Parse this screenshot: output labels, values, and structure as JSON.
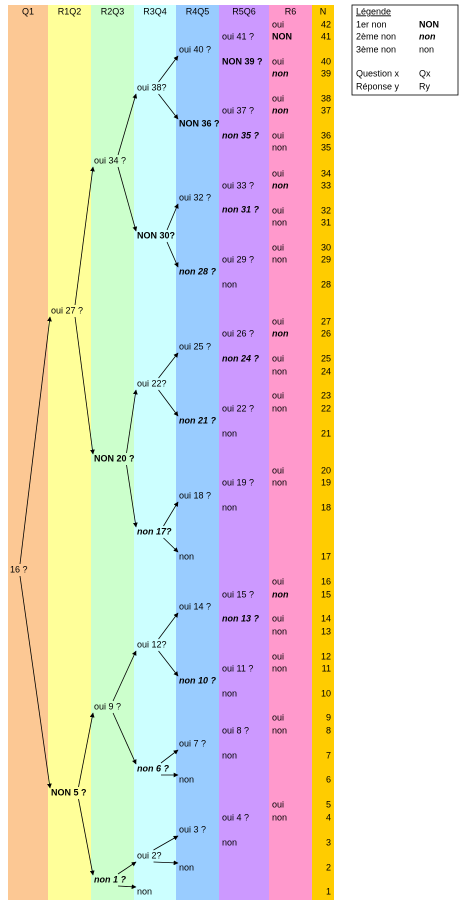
{
  "columns": [
    "Q1",
    "R1Q2",
    "R2Q3",
    "R3Q4",
    "R4Q5",
    "R5Q6",
    "R6",
    "N"
  ],
  "nodes": [
    "16 ?",
    "oui 27 ?",
    "NON 5 ?",
    "oui 34 ?",
    "NON 20 ?",
    "oui 9 ?",
    "non 1 ?",
    "oui 38?",
    "NON 30?",
    "oui 22?",
    "non 17?",
    "oui 12?",
    "non 6 ?",
    "oui 2?",
    "non",
    "oui 40 ?",
    "NON 36 ?",
    "oui 32 ?",
    "non 28 ?",
    "oui 25 ?",
    "non 21 ?",
    "oui 18 ?",
    "non",
    "oui 14 ?",
    "non 10 ?",
    "oui 7 ?",
    "non",
    "oui 3 ?",
    "non",
    "oui 41 ?",
    "NON 39 ?",
    "oui 37 ?",
    "non 35 ?",
    "oui 33 ?",
    "non 31 ?",
    "oui 29 ?",
    "non",
    "oui 26 ?",
    "non 24 ?",
    "oui 22 ?",
    "non",
    "oui 19 ?",
    "non",
    "oui 15 ?",
    "non 13 ?",
    "oui 11 ?",
    "non",
    "oui 8 ?",
    "non",
    "oui 4 ?",
    "non"
  ],
  "answers": [
    "oui",
    "NON",
    "oui",
    "non",
    "oui",
    "non",
    "oui",
    "non",
    "oui",
    "non",
    "oui",
    "non",
    "oui",
    "non",
    "oui",
    "non",
    "oui",
    "non",
    "oui",
    "non",
    "oui",
    "non",
    "oui",
    "non",
    "oui",
    "non",
    "oui",
    "non",
    "oui",
    "non",
    "oui",
    "non"
  ],
  "counts": [
    42,
    41,
    40,
    39,
    38,
    37,
    36,
    35,
    34,
    33,
    32,
    31,
    30,
    29,
    28,
    27,
    26,
    25,
    24,
    23,
    22,
    21,
    20,
    19,
    18,
    17,
    16,
    15,
    14,
    13,
    12,
    11,
    10,
    9,
    8,
    7,
    6,
    5,
    4,
    3,
    2,
    1
  ],
  "legend": {
    "title": "Légende",
    "rows": [
      [
        "1er non",
        "NON"
      ],
      [
        "2ème non",
        "non"
      ],
      [
        "3ème non",
        "non"
      ],
      [
        "Question x",
        "Qx"
      ],
      [
        "Réponse y",
        "Ry"
      ]
    ]
  }
}
